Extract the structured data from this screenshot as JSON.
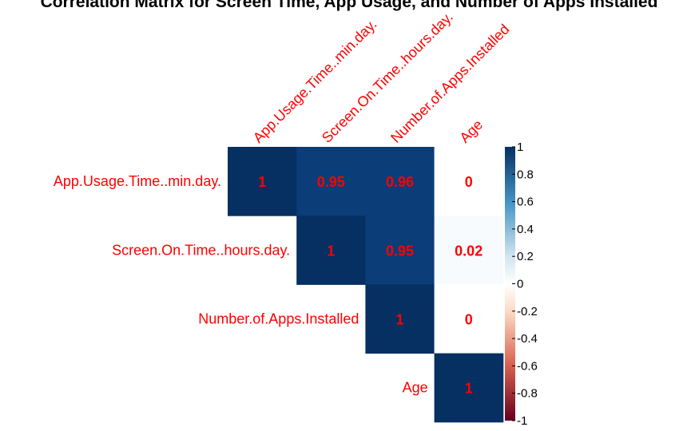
{
  "chart_data": {
    "type": "heatmap",
    "title": "Correlation Matrix for Screen Time, App Usage, and Number of Apps Installed",
    "variables": [
      "App.Usage.Time..min.day.",
      "Screen.On.Time..hours.day.",
      "Number.of.Apps.Installed",
      "Age"
    ],
    "matrix_layout": "upper-triangle",
    "values": [
      [
        1,
        0.95,
        0.96,
        0
      ],
      [
        null,
        1,
        0.95,
        0.02
      ],
      [
        null,
        null,
        1,
        0
      ],
      [
        null,
        null,
        null,
        1
      ]
    ],
    "cell_labels": [
      [
        "1",
        "0.95",
        "0.96",
        "0"
      ],
      [
        null,
        "1",
        "0.95",
        "0.02"
      ],
      [
        null,
        null,
        "1",
        "0"
      ],
      [
        null,
        null,
        null,
        "1"
      ]
    ],
    "colorbar": {
      "range": [
        -1,
        1
      ],
      "ticks": [
        "1",
        "0.8",
        "0.6",
        "0.4",
        "0.2",
        "0",
        "-0.2",
        "-0.4",
        "-0.6",
        "-0.8",
        "-1"
      ],
      "tick_values": [
        1,
        0.8,
        0.6,
        0.4,
        0.2,
        0,
        -0.2,
        -0.4,
        -0.6,
        -0.8,
        -1
      ]
    },
    "colors": {
      "neg": "#67001F",
      "mid": "#FFFFFF",
      "pos": "#053061",
      "label": "#FF0000"
    }
  }
}
